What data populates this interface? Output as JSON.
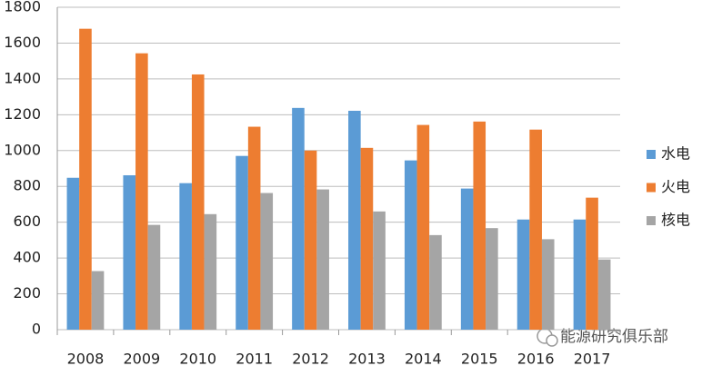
{
  "chart_data": {
    "type": "bar",
    "categories": [
      "2008",
      "2009",
      "2010",
      "2011",
      "2012",
      "2013",
      "2014",
      "2015",
      "2016",
      "2017"
    ],
    "series": [
      {
        "name": "水电",
        "color": "#5b9bd5",
        "values": [
          848,
          862,
          818,
          970,
          1238,
          1222,
          945,
          788,
          615,
          615
        ]
      },
      {
        "name": "火电",
        "color": "#ed7d31",
        "values": [
          1680,
          1543,
          1425,
          1133,
          1000,
          1015,
          1143,
          1162,
          1117,
          737
        ]
      },
      {
        "name": "核电",
        "color": "#a5a5a5",
        "values": [
          327,
          585,
          645,
          763,
          783,
          660,
          528,
          567,
          505,
          392
        ]
      }
    ],
    "ylim": [
      0,
      1800
    ],
    "yticks": [
      0,
      200,
      400,
      600,
      800,
      1000,
      1200,
      1400,
      1600,
      1800
    ],
    "grid": true,
    "legend": "right",
    "watermark": "能源研究俱乐部"
  }
}
